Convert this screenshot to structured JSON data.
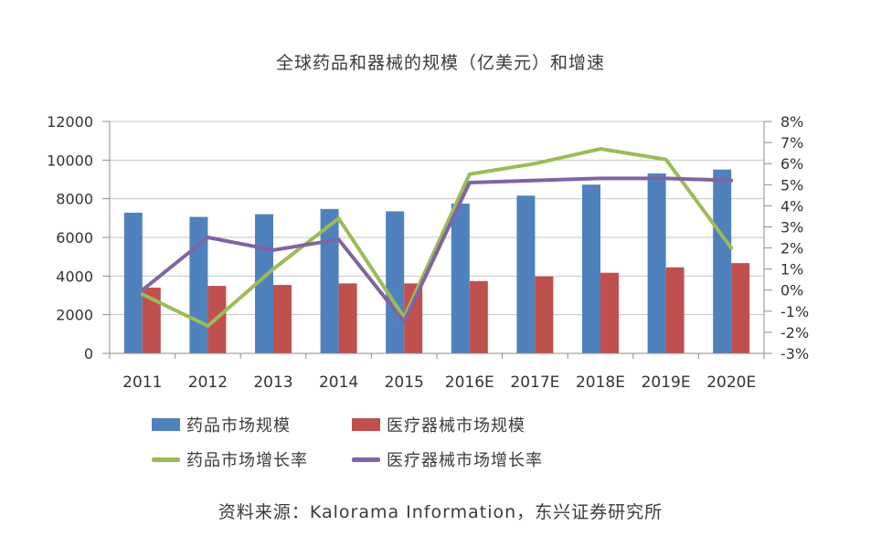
{
  "chart_data": {
    "type": "combo-bar-line",
    "title": "全球药品和器械的规模（亿美元）和增速",
    "source": "资料来源：Kalorama Information，东兴证券研究所",
    "categories": [
      "2011",
      "2012",
      "2013",
      "2014",
      "2015",
      "2016E",
      "2017E",
      "2018E",
      "2019E",
      "2020E"
    ],
    "series": [
      {
        "name": "药品市场规模",
        "type": "bar",
        "axis": "left",
        "color": "#4F81BD",
        "values": [
          7280,
          7060,
          7200,
          7470,
          7350,
          7750,
          8160,
          8730,
          9310,
          9510
        ]
      },
      {
        "name": "医疗器械市场规模",
        "type": "bar",
        "axis": "left",
        "color": "#C0504D",
        "values": [
          3400,
          3490,
          3540,
          3620,
          3620,
          3740,
          3980,
          4170,
          4450,
          4670
        ]
      },
      {
        "name": "药品市场增长率",
        "type": "line",
        "axis": "right",
        "color": "#9BBB59",
        "values": [
          -0.2,
          -1.7,
          1.0,
          3.4,
          -1.3,
          5.5,
          6.0,
          6.7,
          6.2,
          2.0
        ]
      },
      {
        "name": "医疗器械市场增长率",
        "type": "line",
        "axis": "right",
        "color": "#8064A2",
        "values": [
          0.0,
          2.5,
          1.9,
          2.4,
          -1.5,
          5.1,
          5.2,
          5.3,
          5.3,
          5.2
        ]
      }
    ],
    "left_axis": {
      "min": 0,
      "max": 12000,
      "step": 2000,
      "labels": [
        "0",
        "2000",
        "4000",
        "6000",
        "8000",
        "10000",
        "12000"
      ]
    },
    "right_axis": {
      "min": -3,
      "max": 8,
      "step": 1,
      "labels": [
        "-3%",
        "-2%",
        "-1%",
        "0%",
        "1%",
        "2%",
        "3%",
        "4%",
        "5%",
        "6%",
        "7%",
        "8%"
      ]
    },
    "grid": "horizontal",
    "legend_position": "bottom",
    "colors": {
      "gridline": "#c6c6c6",
      "axis": "#8c8c8c",
      "text": "#333333"
    }
  }
}
